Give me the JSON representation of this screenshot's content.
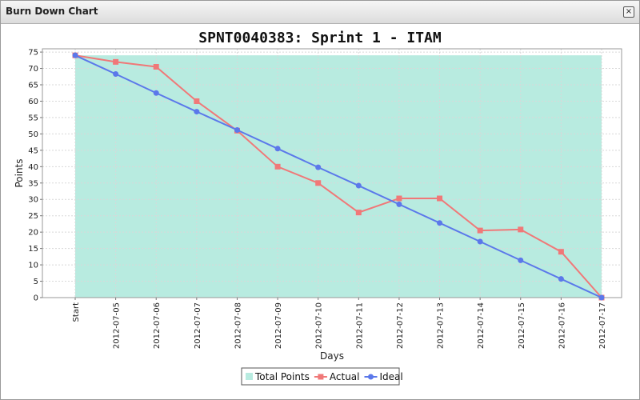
{
  "window": {
    "title": "Burn Down Chart",
    "close_label": "×"
  },
  "chart_data": {
    "type": "line",
    "title": "SPNT0040383: Sprint 1 - ITAM",
    "xlabel": "Days",
    "ylabel": "Points",
    "ylim": [
      0,
      76
    ],
    "yticks": [
      0,
      5,
      10,
      15,
      20,
      25,
      30,
      35,
      40,
      45,
      50,
      55,
      60,
      65,
      70,
      75
    ],
    "grid": true,
    "legend_placement": "bottom-center",
    "categories": [
      "Start",
      "2012-07-05",
      "2012-07-06",
      "2012-07-07",
      "2012-07-08",
      "2012-07-09",
      "2012-07-10",
      "2012-07-11",
      "2012-07-12",
      "2012-07-13",
      "2012-07-14",
      "2012-07-15",
      "2012-07-16",
      "2012-07-17"
    ],
    "series": [
      {
        "name": "Total Points",
        "kind": "area",
        "color": "#b8ebe0",
        "values": [
          74,
          74,
          74,
          74,
          74,
          74,
          74,
          74,
          74,
          74,
          74,
          74,
          74,
          74
        ]
      },
      {
        "name": "Actual",
        "kind": "line",
        "marker": "square",
        "color": "#f07878",
        "values": [
          74,
          72,
          70.5,
          60,
          51,
          40,
          35,
          26,
          30.3,
          30.3,
          20.5,
          20.8,
          14,
          0
        ]
      },
      {
        "name": "Ideal",
        "kind": "line",
        "marker": "circle",
        "color": "#5b78ea",
        "values": [
          74,
          68.3,
          62.5,
          56.8,
          51.2,
          45.5,
          39.8,
          34.2,
          28.5,
          22.8,
          17.1,
          11.4,
          5.7,
          0
        ]
      }
    ]
  }
}
